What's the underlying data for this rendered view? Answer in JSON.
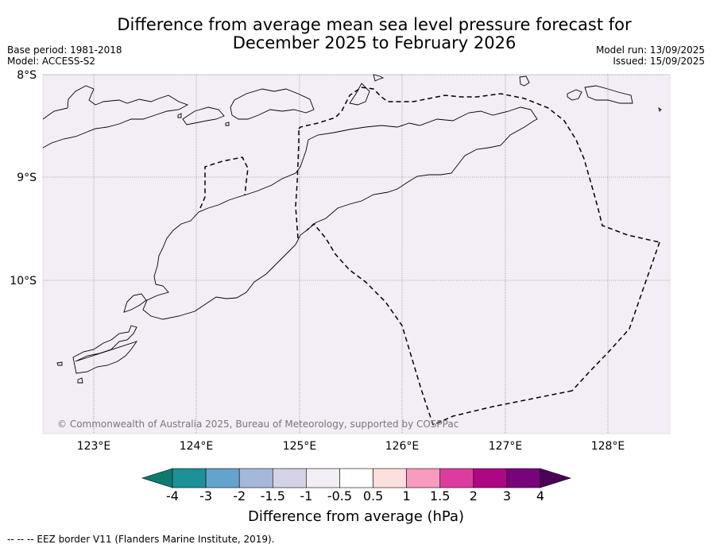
{
  "title": {
    "line1": "Difference from average mean sea level pressure forecast for",
    "line2": "December 2025 to February 2026"
  },
  "meta": {
    "base_period": "Base period: 1981-2018",
    "model": "Model: ACCESS-S2",
    "model_run": "Model run: 13/09/2025",
    "issued": "Issued: 15/09/2025"
  },
  "map": {
    "region": "Timor Sea / Timor-Leste",
    "background_color": "#f3edf5",
    "copyright": "© Commonwealth of Australia 2025, Bureau of Meteorology, supported by COSPPac",
    "lon_labels": [
      "123°E",
      "124°E",
      "125°E",
      "126°E",
      "127°E",
      "128°E"
    ],
    "lat_labels": [
      "8°S",
      "9°S",
      "10°S"
    ],
    "gridlines": true,
    "eez_style": "dashed"
  },
  "legend": {
    "title": "Difference from average (hPa)",
    "tick_labels": [
      "-4",
      "-3",
      "-2",
      "-1.5",
      "-1",
      "-0.5",
      "0.5",
      "1",
      "1.5",
      "2",
      "3",
      "4"
    ],
    "colors": [
      "#0d7b6e",
      "#1d9198",
      "#64a4cc",
      "#a6b8da",
      "#d3d3e5",
      "#f3edf5",
      "#ffffff",
      "#fde0dd",
      "#f89bbe",
      "#dd3c9f",
      "#ac0883",
      "#79037a",
      "#4b0158"
    ]
  },
  "footnote": "-- -- -- EEZ border V11 (Flanders Marine Institute, 2019)."
}
